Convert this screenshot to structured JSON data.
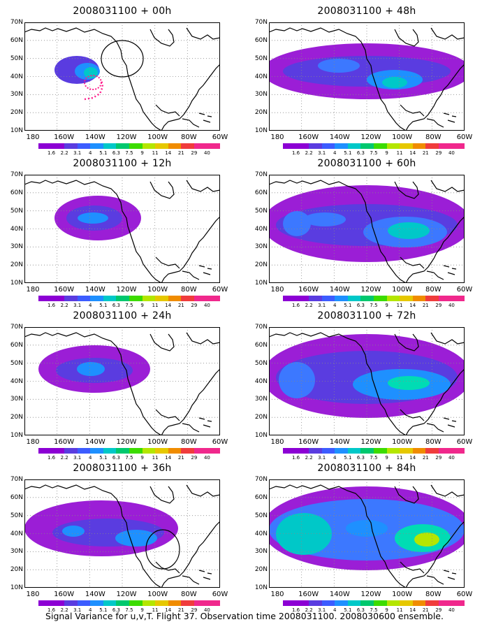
{
  "caption": "Signal Variance for u,v,T. Flight 37. Observation time 2008031100. 2008030600 ensemble.",
  "lat_labels": [
    "70N",
    "60N",
    "50N",
    "40N",
    "30N",
    "20N",
    "10N"
  ],
  "lon_labels": [
    "180",
    "160W",
    "140W",
    "120W",
    "100W",
    "80W",
    "60W"
  ],
  "colorbar": {
    "labels": [
      "1.6",
      "2.2",
      "3.1",
      "4",
      "5.1",
      "6.3",
      "7.5",
      "9",
      "11",
      "14",
      "21",
      "29",
      "40"
    ],
    "colors": [
      "#8c00d4",
      "#8c00d4",
      "#5a3ce0",
      "#3c5cff",
      "#1e90ff",
      "#00c8c8",
      "#00c86e",
      "#3cdc00",
      "#b4e600",
      "#e6c800",
      "#f08c00",
      "#f03c3c",
      "#f0288c",
      "#f0288c"
    ]
  },
  "panels": [
    {
      "id": "p00",
      "title": "2008031100 + 00h"
    },
    {
      "id": "p48",
      "title": "2008031100 + 48h"
    },
    {
      "id": "p12",
      "title": "2008031100 + 12h"
    },
    {
      "id": "p60",
      "title": "2008031100 + 60h"
    },
    {
      "id": "p24",
      "title": "2008031100 + 24h"
    },
    {
      "id": "p72",
      "title": "2008031100 + 72h"
    },
    {
      "id": "p36",
      "title": "2008031100 + 36h"
    },
    {
      "id": "p84",
      "title": "2008031100 + 84h"
    }
  ]
}
